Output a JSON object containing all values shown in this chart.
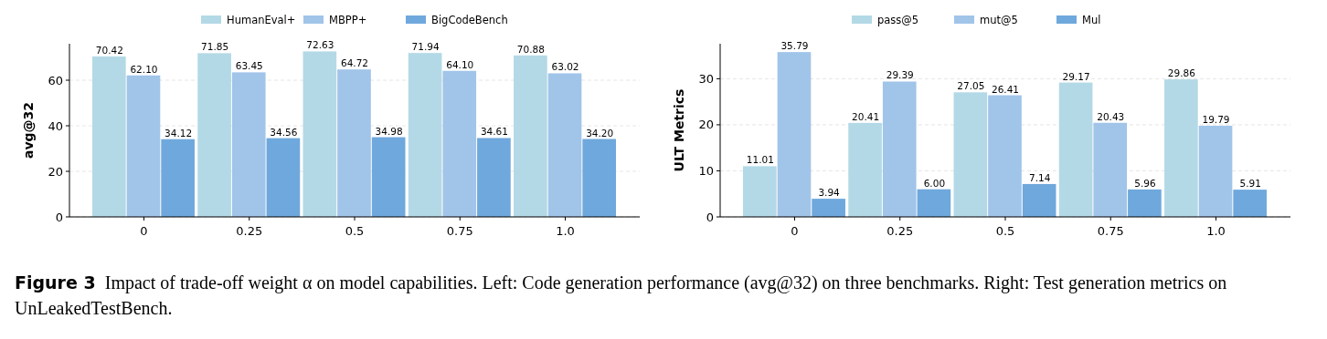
{
  "chart_data": [
    {
      "type": "bar",
      "ylabel": "avg@32",
      "categories": [
        "0",
        "0.25",
        "0.5",
        "0.75",
        "1.0"
      ],
      "series": [
        {
          "name": "HumanEval+",
          "color": "#b3d9e6",
          "values": [
            70.42,
            71.85,
            72.63,
            71.94,
            70.88
          ],
          "value_labels": [
            "70.42",
            "71.85",
            "72.63",
            "71.94",
            "70.88"
          ]
        },
        {
          "name": "MBPP+",
          "color": "#a1c4e9",
          "values": [
            62.1,
            63.45,
            64.72,
            64.1,
            63.02
          ],
          "value_labels": [
            "62.10",
            "63.45",
            "64.72",
            "64.10",
            "63.02"
          ]
        },
        {
          "name": "BigCodeBench",
          "color": "#6fa8dc",
          "values": [
            34.12,
            34.56,
            34.98,
            34.61,
            34.2
          ],
          "value_labels": [
            "34.12",
            "34.56",
            "34.98",
            "34.61",
            "34.20"
          ]
        }
      ],
      "ylim": [
        0,
        76
      ],
      "yticks": [
        0,
        20,
        40,
        60
      ],
      "grid": "y",
      "legend": "top",
      "annotations": [
        "Figure 3",
        "Impact of trade-off weight α on model capabilities. Left: Code generation performance (avg@32) on three benchmarks. Right: Test generation metrics on UnLeakedTestBench."
      ]
    },
    {
      "type": "bar",
      "ylabel": "ULT Metrics",
      "categories": [
        "0",
        "0.25",
        "0.5",
        "0.75",
        "1.0"
      ],
      "series": [
        {
          "name": "pass@5",
          "color": "#b3d9e6",
          "values": [
            11.01,
            20.41,
            27.05,
            29.17,
            29.86
          ],
          "value_labels": [
            "11.01",
            "20.41",
            "27.05",
            "29.17",
            "29.86"
          ]
        },
        {
          "name": "mut@5",
          "color": "#a1c4e9",
          "values": [
            35.79,
            29.39,
            26.41,
            20.43,
            19.79
          ],
          "value_labels": [
            "35.79",
            "29.39",
            "26.41",
            "20.43",
            "19.79"
          ]
        },
        {
          "name": "Mul",
          "color": "#6fa8dc",
          "values": [
            3.94,
            6.0,
            7.14,
            5.96,
            5.91
          ],
          "value_labels": [
            "3.94",
            "6.00",
            "7.14",
            "5.96",
            "5.91"
          ]
        }
      ],
      "ylim": [
        0,
        37.6
      ],
      "yticks": [
        0,
        10,
        20,
        30
      ],
      "grid": "y",
      "legend": "top"
    }
  ]
}
